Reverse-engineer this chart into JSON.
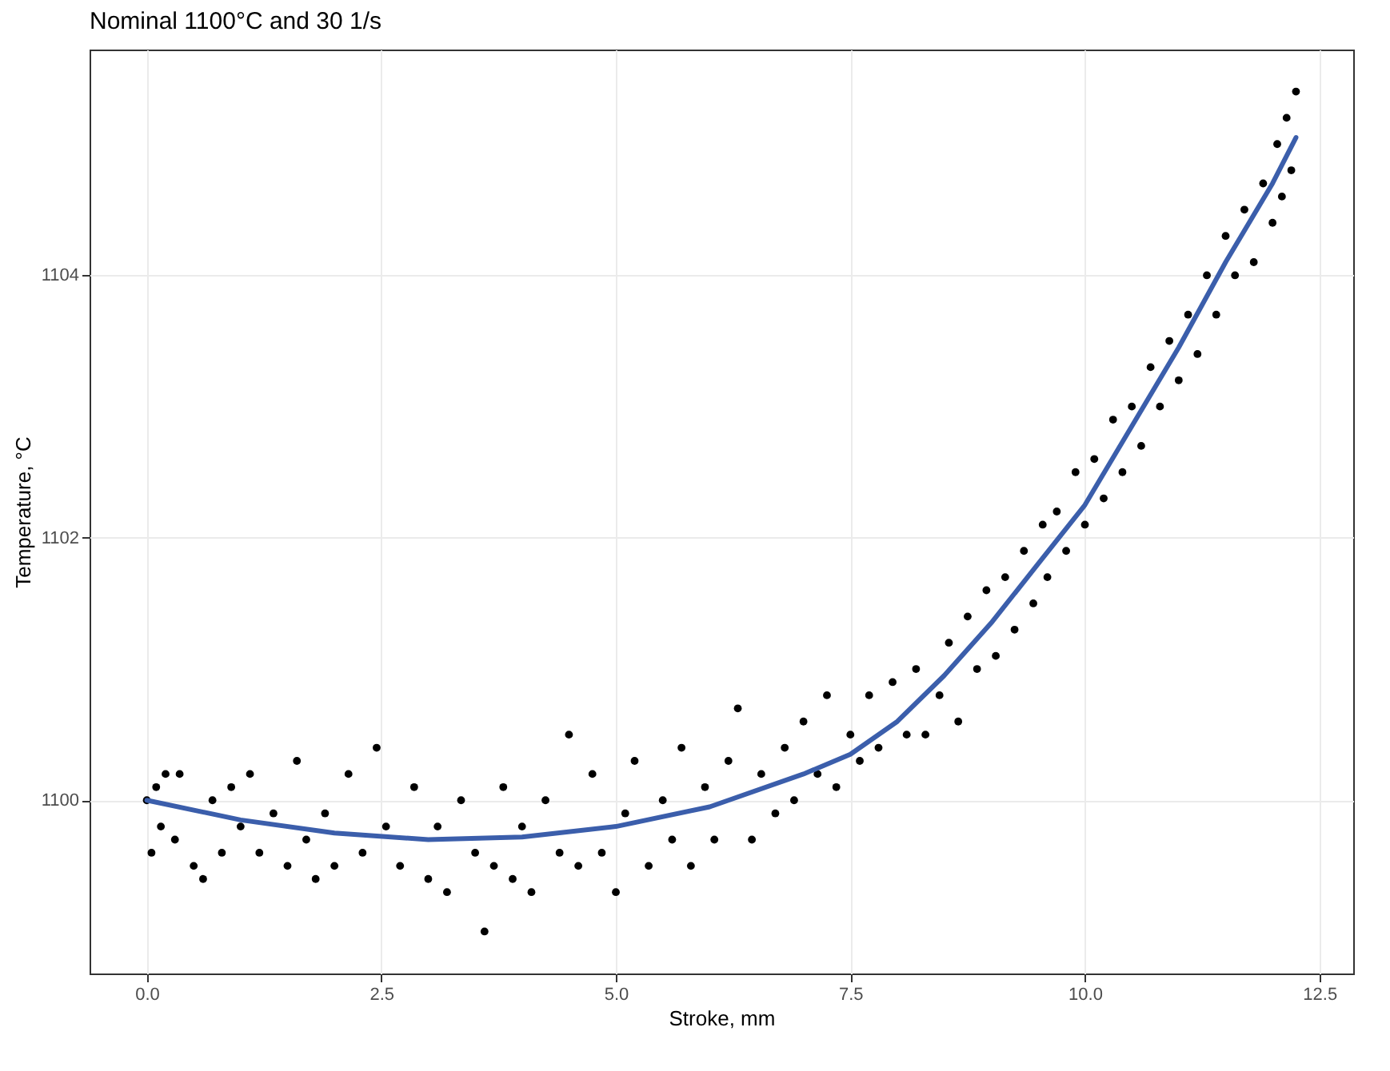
{
  "chart_data": {
    "type": "scatter",
    "title": "Nominal 1100°C and 30 1/s",
    "xlabel": "Stroke, mm",
    "ylabel": "Temperature, °C",
    "xlim": [
      -0.61,
      12.86
    ],
    "ylim": [
      1098.68,
      1105.72
    ],
    "xticks": [
      {
        "value": 0,
        "label": "0.0"
      },
      {
        "value": 2.5,
        "label": "2.5"
      },
      {
        "value": 5,
        "label": "5.0"
      },
      {
        "value": 7.5,
        "label": "7.5"
      },
      {
        "value": 10,
        "label": "10.0"
      },
      {
        "value": 12.5,
        "label": "12.5"
      }
    ],
    "yticks": [
      1100,
      1102,
      1104
    ],
    "grid": true,
    "marker": "circle",
    "series": [
      {
        "color": "#000000",
        "x": [
          0.0,
          0.05,
          0.1,
          0.15,
          0.2,
          0.3,
          0.35,
          0.5,
          0.6,
          0.7,
          0.8,
          0.9,
          1.0,
          1.1,
          1.2,
          1.35,
          1.5,
          1.6,
          1.7,
          1.8,
          1.9,
          2.0,
          2.15,
          2.3,
          2.45,
          2.55,
          2.7,
          2.85,
          3.0,
          3.1,
          3.2,
          3.35,
          3.5,
          3.6,
          3.7,
          3.8,
          3.9,
          4.0,
          4.1,
          4.25,
          4.4,
          4.5,
          4.6,
          4.75,
          4.85,
          5.0,
          5.1,
          5.2,
          5.35,
          5.5,
          5.6,
          5.7,
          5.8,
          5.95,
          6.05,
          6.2,
          6.3,
          6.45,
          6.55,
          6.7,
          6.8,
          6.9,
          7.0,
          7.15,
          7.25,
          7.35,
          7.5,
          7.6,
          7.7,
          7.8,
          7.95,
          8.1,
          8.2,
          8.3,
          8.45,
          8.55,
          8.65,
          8.75,
          8.85,
          8.95,
          9.05,
          9.15,
          9.25,
          9.35,
          9.45,
          9.55,
          9.6,
          9.7,
          9.8,
          9.9,
          10.0,
          10.1,
          10.2,
          10.3,
          10.4,
          10.5,
          10.6,
          10.7,
          10.8,
          10.9,
          11.0,
          11.1,
          11.2,
          11.3,
          11.4,
          11.5,
          11.6,
          11.7,
          11.8,
          11.9,
          12.0,
          12.05,
          12.1,
          12.15,
          12.2,
          12.25
        ],
        "values": [
          1100.0,
          1099.6,
          1100.1,
          1099.8,
          1100.2,
          1099.7,
          1100.2,
          1099.5,
          1099.4,
          1100.0,
          1099.6,
          1100.1,
          1099.8,
          1100.2,
          1099.6,
          1099.9,
          1099.5,
          1100.3,
          1099.7,
          1099.4,
          1099.9,
          1099.5,
          1100.2,
          1099.6,
          1100.4,
          1099.8,
          1099.5,
          1100.1,
          1099.4,
          1099.8,
          1099.3,
          1100.0,
          1099.6,
          1099.0,
          1099.5,
          1100.1,
          1099.4,
          1099.8,
          1099.3,
          1100.0,
          1099.6,
          1100.5,
          1099.5,
          1100.2,
          1099.6,
          1099.3,
          1099.9,
          1100.3,
          1099.5,
          1100.0,
          1099.7,
          1100.4,
          1099.5,
          1100.1,
          1099.7,
          1100.3,
          1100.7,
          1099.7,
          1100.2,
          1099.9,
          1100.4,
          1100.0,
          1100.6,
          1100.2,
          1100.8,
          1100.1,
          1100.5,
          1100.3,
          1100.8,
          1100.4,
          1100.9,
          1100.5,
          1101.0,
          1100.5,
          1100.8,
          1101.2,
          1100.6,
          1101.4,
          1101.0,
          1101.6,
          1101.1,
          1101.7,
          1101.3,
          1101.9,
          1101.5,
          1102.1,
          1101.7,
          1102.2,
          1101.9,
          1102.5,
          1102.1,
          1102.6,
          1102.3,
          1102.9,
          1102.5,
          1103.0,
          1102.7,
          1103.3,
          1103.0,
          1103.5,
          1103.2,
          1103.7,
          1103.4,
          1104.0,
          1103.7,
          1104.3,
          1104.0,
          1104.5,
          1104.1,
          1104.7,
          1104.4,
          1105.0,
          1104.6,
          1105.2,
          1104.8,
          1105.4
        ]
      },
      {
        "type": "line",
        "marker": "none",
        "color": "#3b5eab",
        "x": [
          0,
          1,
          2,
          3,
          4,
          5,
          6,
          7,
          7.5,
          8,
          8.5,
          9,
          9.5,
          10,
          10.5,
          11,
          11.5,
          12,
          12.25
        ],
        "values": [
          1100.0,
          1099.85,
          1099.75,
          1099.7,
          1099.72,
          1099.8,
          1099.95,
          1100.2,
          1100.35,
          1100.6,
          1100.95,
          1101.35,
          1101.8,
          1102.25,
          1102.85,
          1103.45,
          1104.1,
          1104.7,
          1105.05
        ]
      }
    ]
  }
}
